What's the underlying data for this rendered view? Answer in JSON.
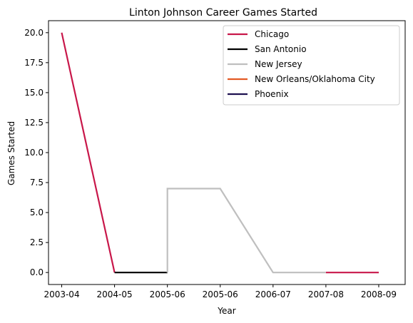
{
  "chart_data": {
    "type": "line",
    "title": "Linton Johnson Career Games Started",
    "xlabel": "Year",
    "ylabel": "Games Started",
    "categories": [
      "2003-04",
      "2004-05",
      "2005-06",
      "2005-06",
      "2006-07",
      "2007-08",
      "2008-09"
    ],
    "ylim": [
      -1.0,
      21.0
    ],
    "yticks": [
      0.0,
      2.5,
      5.0,
      7.5,
      10.0,
      12.5,
      15.0,
      17.5,
      20.0
    ],
    "ytick_labels": [
      "0.0",
      "2.5",
      "5.0",
      "7.5",
      "10.0",
      "12.5",
      "15.0",
      "17.5",
      "20.0"
    ],
    "legend_position": "top-right",
    "series": [
      {
        "name": "Chicago",
        "color": "#c8174a",
        "segments": [
          {
            "x": [
              0,
              1
            ],
            "y": [
              20,
              0
            ]
          },
          {
            "x": [
              5,
              6
            ],
            "y": [
              0,
              0
            ]
          }
        ]
      },
      {
        "name": "San Antonio",
        "color": "#000000",
        "segments": [
          {
            "x": [
              1,
              2
            ],
            "y": [
              0,
              0
            ]
          }
        ]
      },
      {
        "name": "New Jersey",
        "color": "#bfbfbf",
        "segments": [
          {
            "x": [
              2,
              2,
              3,
              4,
              5
            ],
            "y": [
              0,
              7,
              7,
              0,
              0
            ]
          }
        ]
      },
      {
        "name": "New Orleans/Oklahoma City",
        "color": "#e35a24",
        "segments": []
      },
      {
        "name": "Phoenix",
        "color": "#1d1150",
        "segments": []
      }
    ]
  }
}
